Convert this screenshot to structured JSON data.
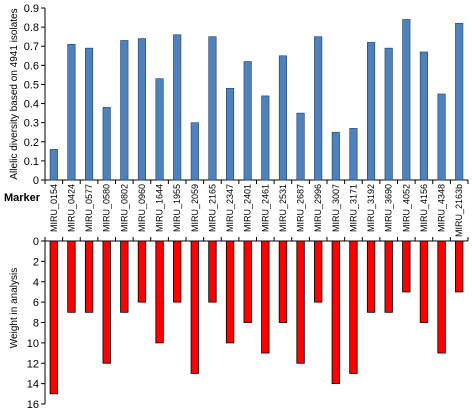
{
  "chart_data": [
    {
      "type": "bar",
      "name": "top",
      "categories": [
        "MIRU_0154",
        "MIRU_0424",
        "MIRU_0577",
        "MIRU_0580",
        "MIRU_0802",
        "MIRU_0960",
        "MIRU_1644",
        "MIRU_1955",
        "MIRU_2059",
        "MIRU_2165",
        "MIRU_2347",
        "MIRU_2401",
        "MIRU_2461",
        "MIRU_2531",
        "MIRU_2687",
        "MIRU_2996",
        "MIRU_3007",
        "MIRU_3171",
        "MIRU_3192",
        "MIRU_3690",
        "MIRU_4052",
        "MIRU_4156",
        "MIRU_4348",
        "MIRU_2163b"
      ],
      "values": [
        0.16,
        0.71,
        0.69,
        0.38,
        0.73,
        0.74,
        0.53,
        0.76,
        0.3,
        0.75,
        0.48,
        0.62,
        0.44,
        0.65,
        0.35,
        0.75,
        0.25,
        0.27,
        0.72,
        0.69,
        0.84,
        0.67,
        0.45,
        0.82
      ],
      "ylabel": "Allelic diversity based on 4941 isolates",
      "ylim": [
        0,
        0.9
      ],
      "yticks": [
        "0",
        "0.1",
        "0.2",
        "0.3",
        "0.4",
        "0.5",
        "0.6",
        "0.7",
        "0.8",
        "0.9"
      ],
      "color": "#4f81bd",
      "xlabel": "Marker"
    },
    {
      "type": "bar",
      "name": "bottom",
      "categories": [
        "MIRU_0154",
        "MIRU_0424",
        "MIRU_0577",
        "MIRU_0580",
        "MIRU_0802",
        "MIRU_0960",
        "MIRU_1644",
        "MIRU_1955",
        "MIRU_2059",
        "MIRU_2165",
        "MIRU_2347",
        "MIRU_2401",
        "MIRU_2461",
        "MIRU_2531",
        "MIRU_2687",
        "MIRU_2996",
        "MIRU_3007",
        "MIRU_3171",
        "MIRU_3192",
        "MIRU_3690",
        "MIRU_4052",
        "MIRU_4156",
        "MIRU_4348",
        "MIRU_2163b"
      ],
      "values": [
        15,
        7,
        7,
        12,
        7,
        6,
        10,
        6,
        13,
        6,
        10,
        8,
        11,
        8,
        12,
        6,
        14,
        13,
        7,
        7,
        5,
        8,
        11,
        5
      ],
      "ylabel": "Weight in analysis",
      "ylim": [
        0,
        16
      ],
      "yticks": [
        "0",
        "2",
        "4",
        "6",
        "8",
        "10",
        "12",
        "14",
        "16"
      ],
      "inverted": true,
      "color": "#ff0000"
    }
  ]
}
